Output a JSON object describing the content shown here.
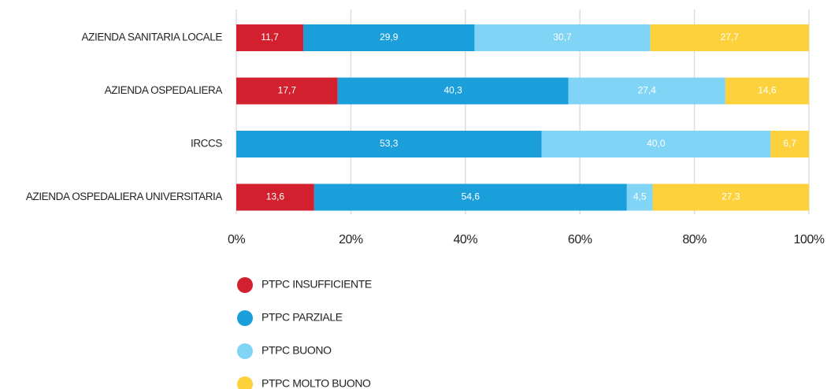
{
  "chart_data": {
    "type": "stacked-bar-horizontal",
    "categories": [
      "AZIENDA SANITARIA LOCALE",
      "AZIENDA OSPEDALIERA",
      "IRCCS",
      "AZIENDA OSPEDALIERA UNIVERSITARIA"
    ],
    "series": [
      {
        "name": "PTPC INSUFFICIENTE",
        "color": "#d2202f",
        "values": [
          11.7,
          17.7,
          0,
          13.6
        ],
        "value_labels": [
          "11,7",
          "17,7",
          null,
          "13,6"
        ]
      },
      {
        "name": "PTPC PARZIALE",
        "color": "#1a9fdb",
        "values": [
          29.9,
          40.3,
          53.3,
          54.6
        ],
        "value_labels": [
          "29,9",
          "40,3",
          "53,3",
          "54,6"
        ]
      },
      {
        "name": "PTPC BUONO",
        "color": "#80d4f6",
        "values": [
          30.7,
          27.4,
          40.0,
          4.5
        ],
        "value_labels": [
          "30,7",
          "27,4",
          "40,0",
          "4,5"
        ]
      },
      {
        "name": "PTPC MOLTO BUONO",
        "color": "#fdd13c",
        "values": [
          27.7,
          14.6,
          6.7,
          27.3
        ],
        "value_labels": [
          "27,7",
          "14,6",
          "6,7",
          "27,3"
        ]
      }
    ],
    "xlim": [
      0,
      100
    ],
    "xticks": [
      {
        "value": 0,
        "label": "0%"
      },
      {
        "value": 20,
        "label": "20%"
      },
      {
        "value": 40,
        "label": "40%"
      },
      {
        "value": 60,
        "label": "60%"
      },
      {
        "value": 80,
        "label": "80%"
      },
      {
        "value": 100,
        "label": "100%"
      }
    ],
    "grid": true
  }
}
